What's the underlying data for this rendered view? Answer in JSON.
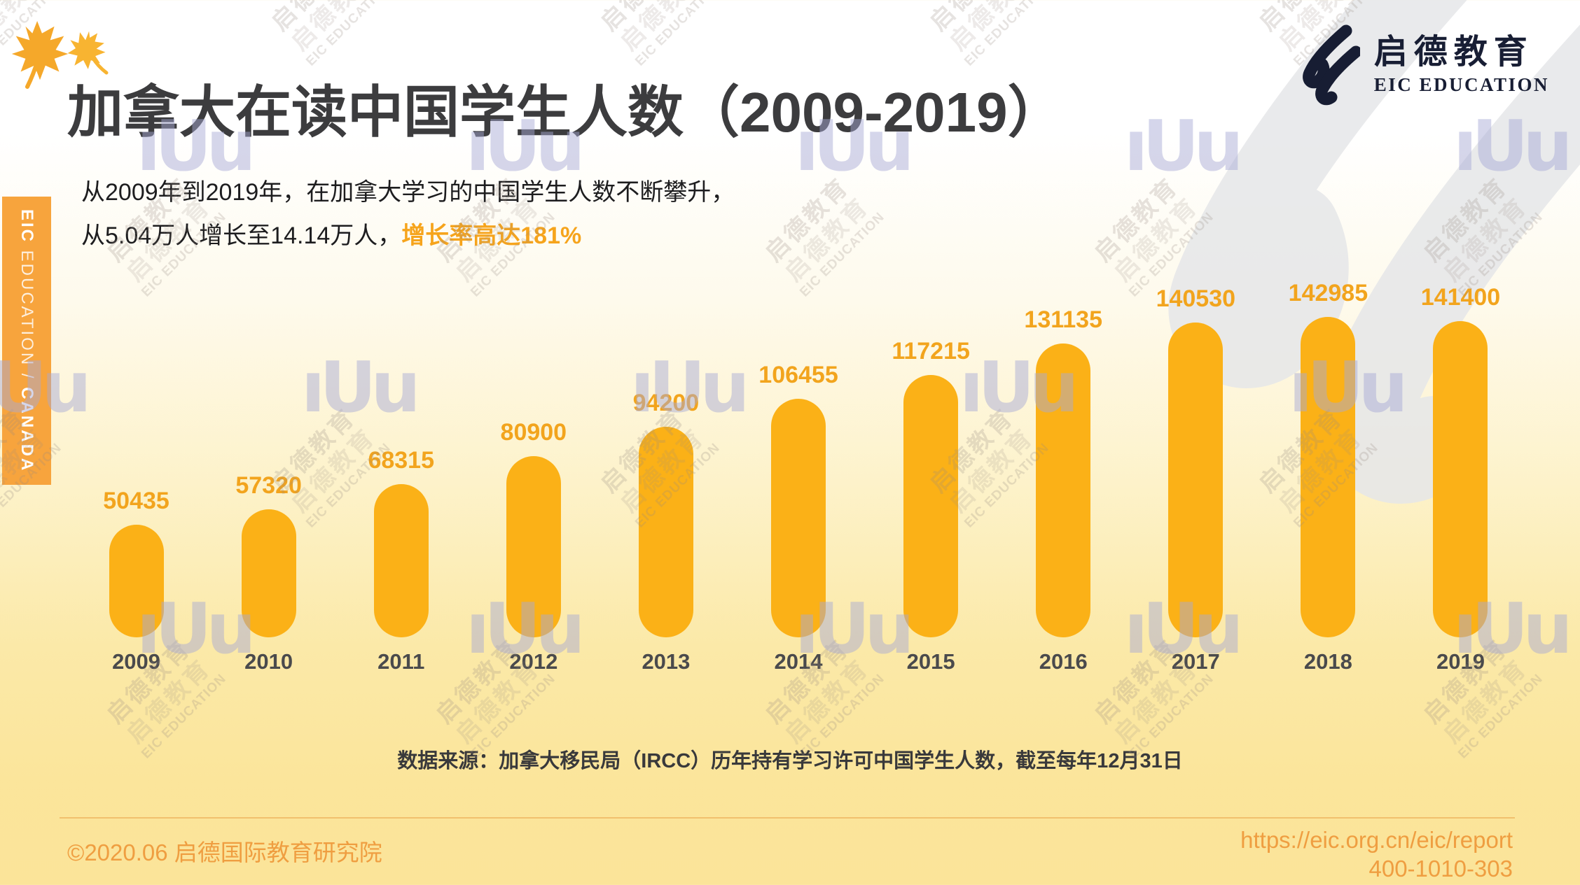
{
  "header": {
    "title": "加拿大在读中国学生人数（2009-2019）",
    "logo": {
      "cn": "启德教育",
      "en": "EIC EDUCATION"
    }
  },
  "sidebar": {
    "part1": "EIC",
    "part2": " EDUCATION / ",
    "part3": "CANADA"
  },
  "intro": {
    "line1": "从2009年到2019年，在加拿大学习的中国学生人数不断攀升，",
    "line2_prefix": "从5.04万人增长至14.14万人，",
    "line2_highlight": "增长率高达181%"
  },
  "chart_data": {
    "type": "bar",
    "categories": [
      "2009",
      "2010",
      "2011",
      "2012",
      "2013",
      "2014",
      "2015",
      "2016",
      "2017",
      "2018",
      "2019"
    ],
    "values": [
      50435,
      57320,
      68315,
      80900,
      94200,
      106455,
      117215,
      131135,
      140530,
      142985,
      141400
    ],
    "title": "加拿大在读中国学生人数（2009-2019）",
    "xlabel": "",
    "ylabel": "",
    "ylim": [
      0,
      150000
    ],
    "grid": false,
    "legend": "none",
    "bar_color": "#FBB117",
    "value_label_color": "#F2A41D",
    "axis_label_color": "#4A4A4C"
  },
  "source_note": "数据来源：加拿大移民局（IRCC）历年持有学习许可中国学生人数，截至每年12月31日",
  "footer": {
    "copyright": "©2020.06 启德国际教育研究院",
    "url": "https://eic.org.cn/eic/report",
    "phone": "400-1010-303"
  },
  "watermark": {
    "line1": "启德教育",
    "line2": "启德教育",
    "line3": "EIC EDUCATION",
    "glyph": "ıUu"
  },
  "colors": {
    "bar": "#FBB117",
    "highlight_orange": "#F6A41C",
    "sidebar_orange": "#F7A43D",
    "footer_orange": "#EF9E41",
    "logo_navy": "#181E34",
    "title_gray": "#3C3C3E",
    "background_bottom": "#FBE499",
    "watermark_lavender": "#A7AAD5"
  }
}
